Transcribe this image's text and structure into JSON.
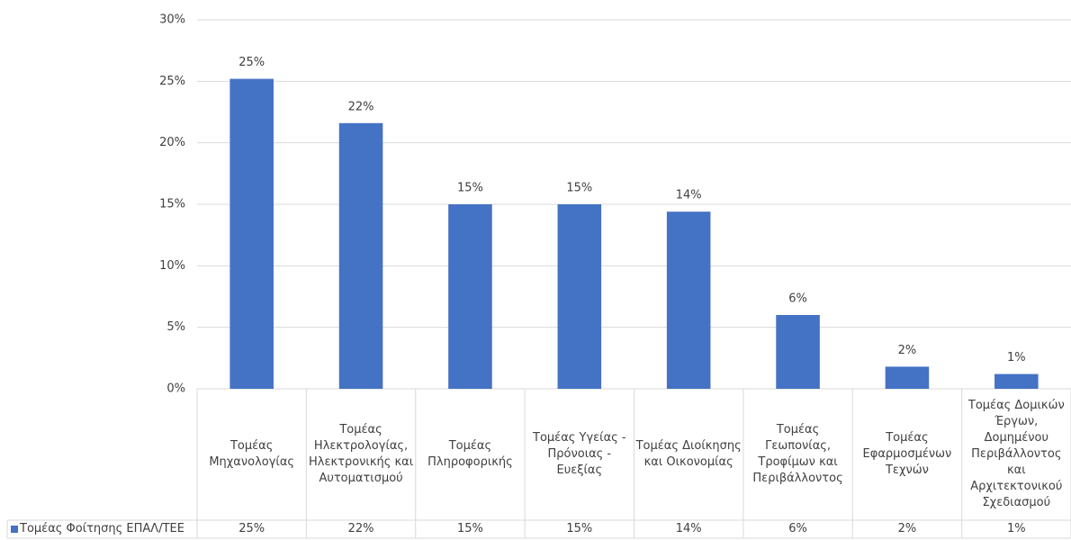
{
  "chart_data": {
    "type": "bar",
    "categories": [
      "Τομέας Μηχανολογίας",
      "Τομέας Ηλεκτρολογίας, Ηλεκτρονικής και Αυτοματισμού",
      "Τομέας Πληροφορικής",
      "Τομέας Υγείας - Πρόνοιας - Ευεξίας",
      "Τομέας Διοίκησης και Οικονομίας",
      "Τομέας Γεωπονίας, Τροφίμων και Περιβάλλοντος",
      "Τομέας Εφαρμοσμένων Τεχνών",
      "Τομέας Δομικών Έργων, Δομημένου Περιβάλλοντος και Αρχιτεκτονικού Σχεδιασμού"
    ],
    "series": [
      {
        "name": "Τομέας Φοίτησης ΕΠΑΛ/ΤΕΕ",
        "color": "#4472c4",
        "values": [
          25.2,
          21.6,
          15.0,
          15.0,
          14.4,
          6.0,
          1.8,
          1.2
        ],
        "value_labels": [
          "25%",
          "22%",
          "15%",
          "15%",
          "14%",
          "6%",
          "2%",
          "1%"
        ]
      }
    ],
    "ylim": [
      0,
      30
    ],
    "yticks": [
      {
        "value": 0,
        "label": "0%"
      },
      {
        "value": 5,
        "label": "5%"
      },
      {
        "value": 10,
        "label": "10%"
      },
      {
        "value": 15,
        "label": "15%"
      },
      {
        "value": 20,
        "label": "20%"
      },
      {
        "value": 25,
        "label": "25%"
      },
      {
        "value": 30,
        "label": "30%"
      }
    ],
    "grid": true,
    "data_table": true
  }
}
